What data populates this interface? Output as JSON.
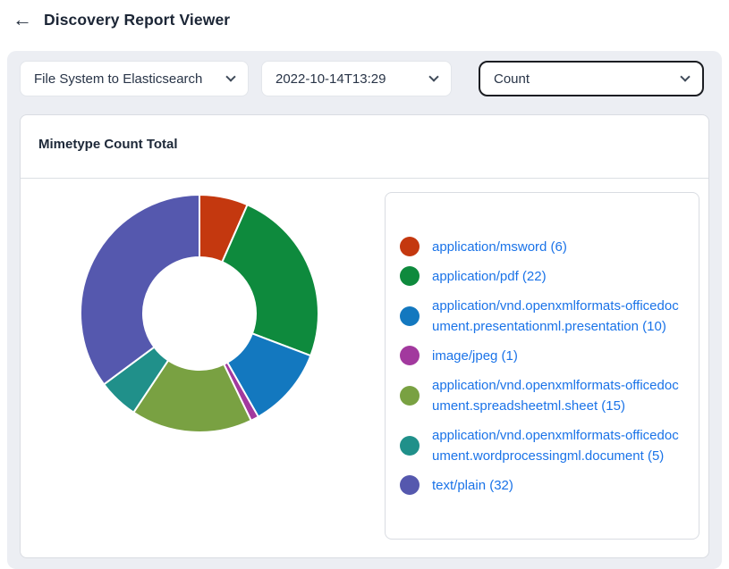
{
  "header": {
    "back_icon": "←",
    "title": "Discovery Report Viewer"
  },
  "filters": {
    "report_select": {
      "value": "File System to Elasticsearch"
    },
    "date_select": {
      "value": "2022-10-14T13:29"
    },
    "metric_select": {
      "value": "Count"
    }
  },
  "card": {
    "title": "Mimetype Count Total"
  },
  "chart_data": {
    "type": "pie",
    "donut": true,
    "title": "Mimetype Count Total",
    "legend_position": "right",
    "total": 91,
    "start_angle_deg": 0,
    "direction": "clockwise",
    "categories": [
      "application/msword",
      "application/pdf",
      "application/vnd.openxmlformats-officedocument.presentationml.presentation",
      "image/jpeg",
      "application/vnd.openxmlformats-officedocument.spreadsheetml.sheet",
      "application/vnd.openxmlformats-officedocument.wordprocessingml.document",
      "text/plain"
    ],
    "values": [
      6,
      22,
      10,
      1,
      15,
      5,
      32
    ],
    "slices": [
      {
        "id": "msword",
        "label": "application/msword",
        "value": 6,
        "color": "#c4380f",
        "legend_text": "application/msword (6)"
      },
      {
        "id": "pdf",
        "label": "application/pdf",
        "value": 22,
        "color": "#0e8a3d",
        "legend_text": "application/pdf (22)"
      },
      {
        "id": "pptx",
        "label": "application/vnd.openxmlformats-officedocument.presentationml.presentation",
        "value": 10,
        "color": "#1378bf",
        "legend_text": "application/vnd.openxmlformats-officedocument.presentationml.presentation (10)"
      },
      {
        "id": "jpeg",
        "label": "image/jpeg",
        "value": 1,
        "color": "#a2399e",
        "legend_text": "image/jpeg (1)"
      },
      {
        "id": "xlsx",
        "label": "application/vnd.openxmlformats-officedocument.spreadsheetml.sheet",
        "value": 15,
        "color": "#79a142",
        "legend_text": "application/vnd.openxmlformats-officedocument.spreadsheetml.sheet (15)"
      },
      {
        "id": "docx",
        "label": "application/vnd.openxmlformats-officedocument.wordprocessingml.document",
        "value": 5,
        "color": "#20908a",
        "legend_text": "application/vnd.openxmlformats-officedocument.wordprocessingml.document (5)"
      },
      {
        "id": "txt",
        "label": "text/plain",
        "value": 32,
        "color": "#5558ae",
        "legend_text": "text/plain (32)"
      }
    ],
    "colors": {
      "legend_text": "#1a73e8",
      "slice_separator": "#ffffff"
    }
  }
}
